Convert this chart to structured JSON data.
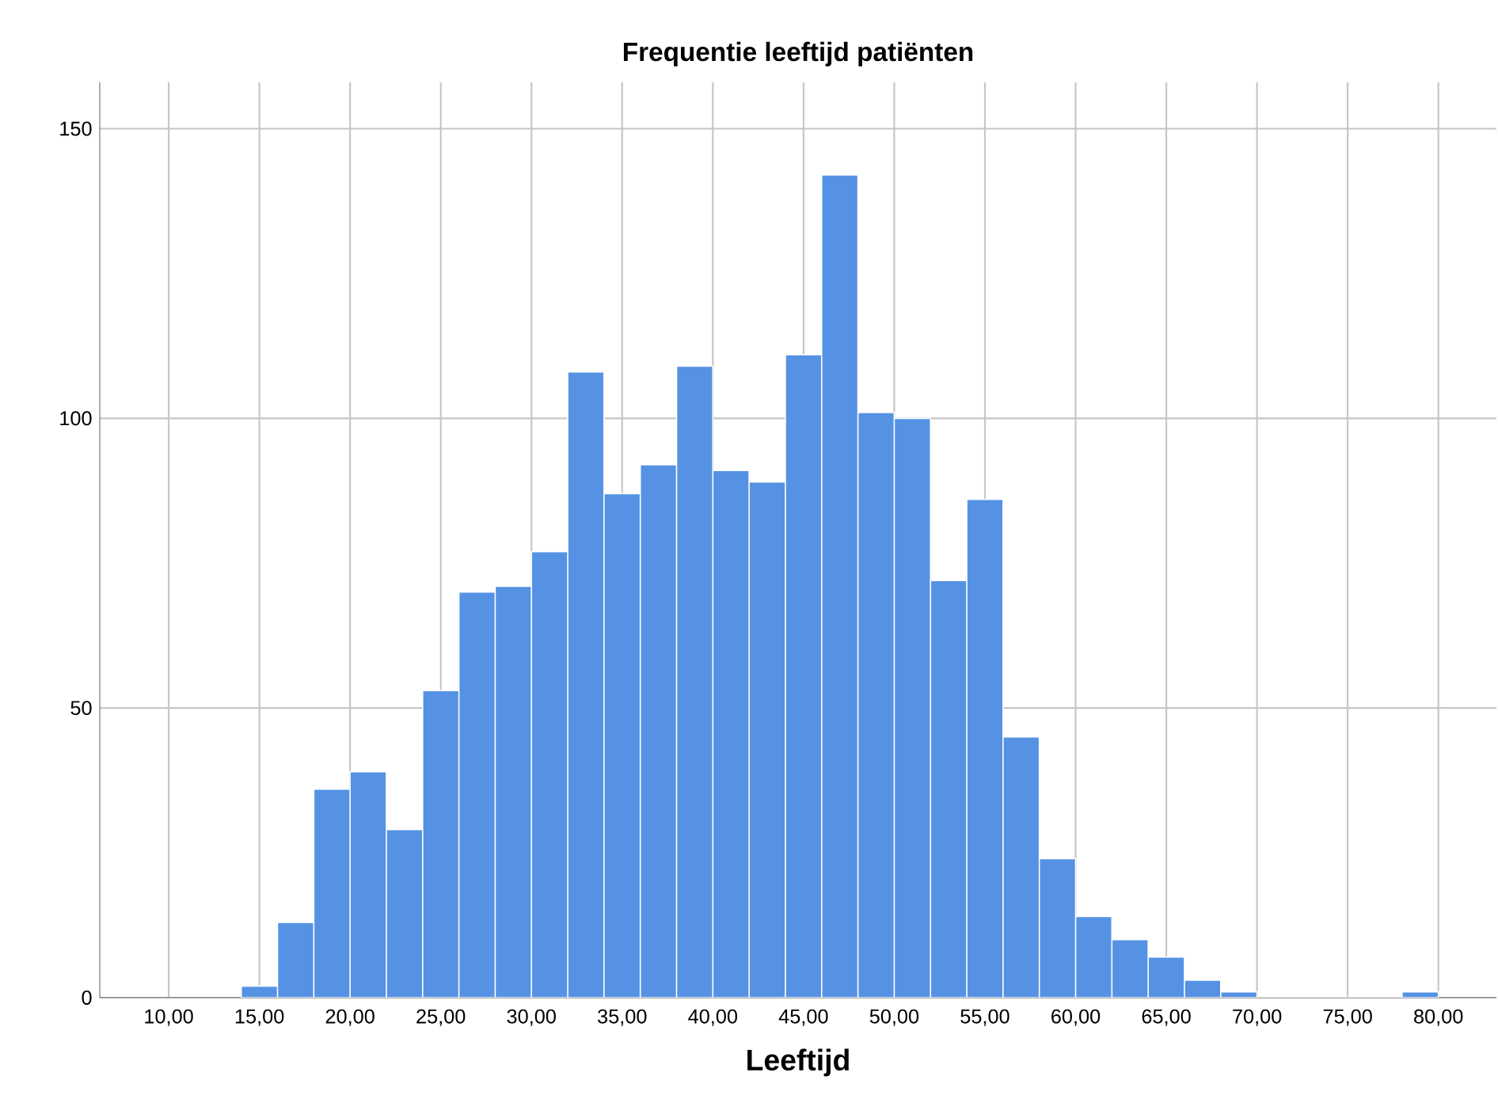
{
  "chart_data": {
    "type": "histogram",
    "title": "Frequentie leeftijd patiënten",
    "xlabel": "Leeftijd",
    "bins": [
      14,
      16,
      18,
      20,
      22,
      24,
      26,
      28,
      30,
      32,
      34,
      36,
      38,
      40,
      42,
      44,
      46,
      48,
      50,
      52,
      54,
      56,
      58,
      60,
      62,
      64,
      66,
      68,
      70,
      72,
      74,
      76,
      78,
      80
    ],
    "values": [
      2,
      13,
      36,
      39,
      29,
      53,
      70,
      71,
      77,
      108,
      87,
      92,
      109,
      91,
      89,
      111,
      142,
      101,
      100,
      72,
      86,
      45,
      24,
      14,
      10,
      7,
      3,
      1,
      0,
      0,
      0,
      0,
      1
    ],
    "color": "#5592e4",
    "xlim": [
      6.2,
      83.2
    ],
    "ylim": [
      0,
      158
    ],
    "xticks": [
      {
        "value": 10,
        "label": "10,00"
      },
      {
        "value": 15,
        "label": "15,00"
      },
      {
        "value": 20,
        "label": "20,00"
      },
      {
        "value": 25,
        "label": "25,00"
      },
      {
        "value": 30,
        "label": "30,00"
      },
      {
        "value": 35,
        "label": "35,00"
      },
      {
        "value": 40,
        "label": "40,00"
      },
      {
        "value": 45,
        "label": "45,00"
      },
      {
        "value": 50,
        "label": "50,00"
      },
      {
        "value": 55,
        "label": "55,00"
      },
      {
        "value": 60,
        "label": "60,00"
      },
      {
        "value": 65,
        "label": "65,00"
      },
      {
        "value": 70,
        "label": "70,00"
      },
      {
        "value": 75,
        "label": "75,00"
      },
      {
        "value": 80,
        "label": "80,00"
      }
    ],
    "yticks": [
      0,
      50,
      100,
      150
    ],
    "grid": true
  }
}
